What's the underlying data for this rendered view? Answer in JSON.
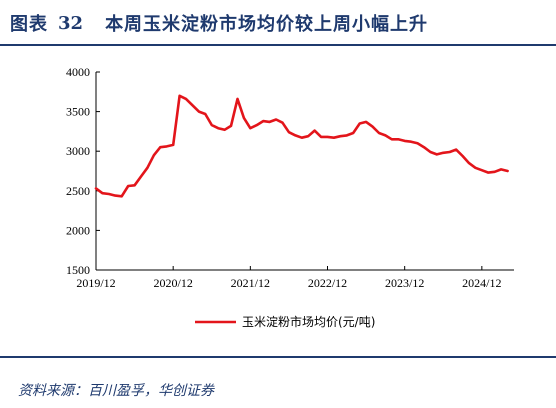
{
  "figure": {
    "label": "图表",
    "number": "32",
    "title": "本周玉米淀粉市场均价较上周小幅上升"
  },
  "source": "资料来源：百川盈孚，华创证券",
  "colors": {
    "line": "#e3151b",
    "title": "#1f3a6e"
  },
  "chart_data": {
    "type": "line",
    "title": "",
    "xlabel": "",
    "ylabel": "",
    "ylim": [
      1500,
      4000
    ],
    "yticks": [
      1500,
      2000,
      2500,
      3000,
      3500,
      4000
    ],
    "xlim": [
      "2019/12",
      "2025/05"
    ],
    "xticks": [
      "2019/12",
      "2020/12",
      "2021/12",
      "2022/12",
      "2023/12",
      "2024/12"
    ],
    "legend_position": "bottom-center",
    "grid": false,
    "series": [
      {
        "name": "玉米淀粉市场均价(元/吨)",
        "x": [
          "2019/12",
          "2020/01",
          "2020/02",
          "2020/03",
          "2020/04",
          "2020/05",
          "2020/06",
          "2020/07",
          "2020/08",
          "2020/09",
          "2020/10",
          "2020/11",
          "2020/12",
          "2021/01",
          "2021/02",
          "2021/03",
          "2021/04",
          "2021/05",
          "2021/06",
          "2021/07",
          "2021/08",
          "2021/09",
          "2021/10",
          "2021/11",
          "2021/12",
          "2022/01",
          "2022/02",
          "2022/03",
          "2022/04",
          "2022/05",
          "2022/06",
          "2022/07",
          "2022/08",
          "2022/09",
          "2022/10",
          "2022/11",
          "2022/12",
          "2023/01",
          "2023/02",
          "2023/03",
          "2023/04",
          "2023/05",
          "2023/06",
          "2023/07",
          "2023/08",
          "2023/09",
          "2023/10",
          "2023/11",
          "2023/12",
          "2024/01",
          "2024/02",
          "2024/03",
          "2024/04",
          "2024/05",
          "2024/06",
          "2024/07",
          "2024/08",
          "2024/09",
          "2024/10",
          "2024/11",
          "2024/12",
          "2025/01",
          "2025/02",
          "2025/03",
          "2025/04"
        ],
        "values": [
          2530,
          2470,
          2460,
          2440,
          2430,
          2560,
          2570,
          2680,
          2790,
          2950,
          3050,
          3060,
          3080,
          3700,
          3660,
          3580,
          3500,
          3470,
          3330,
          3290,
          3270,
          3320,
          3660,
          3420,
          3290,
          3330,
          3380,
          3370,
          3400,
          3360,
          3240,
          3200,
          3170,
          3190,
          3260,
          3180,
          3180,
          3170,
          3190,
          3200,
          3230,
          3350,
          3370,
          3310,
          3230,
          3200,
          3150,
          3150,
          3130,
          3120,
          3100,
          3050,
          2990,
          2960,
          2980,
          2990,
          3020,
          2940,
          2850,
          2790,
          2760,
          2730,
          2740,
          2770,
          2750
        ]
      }
    ]
  }
}
